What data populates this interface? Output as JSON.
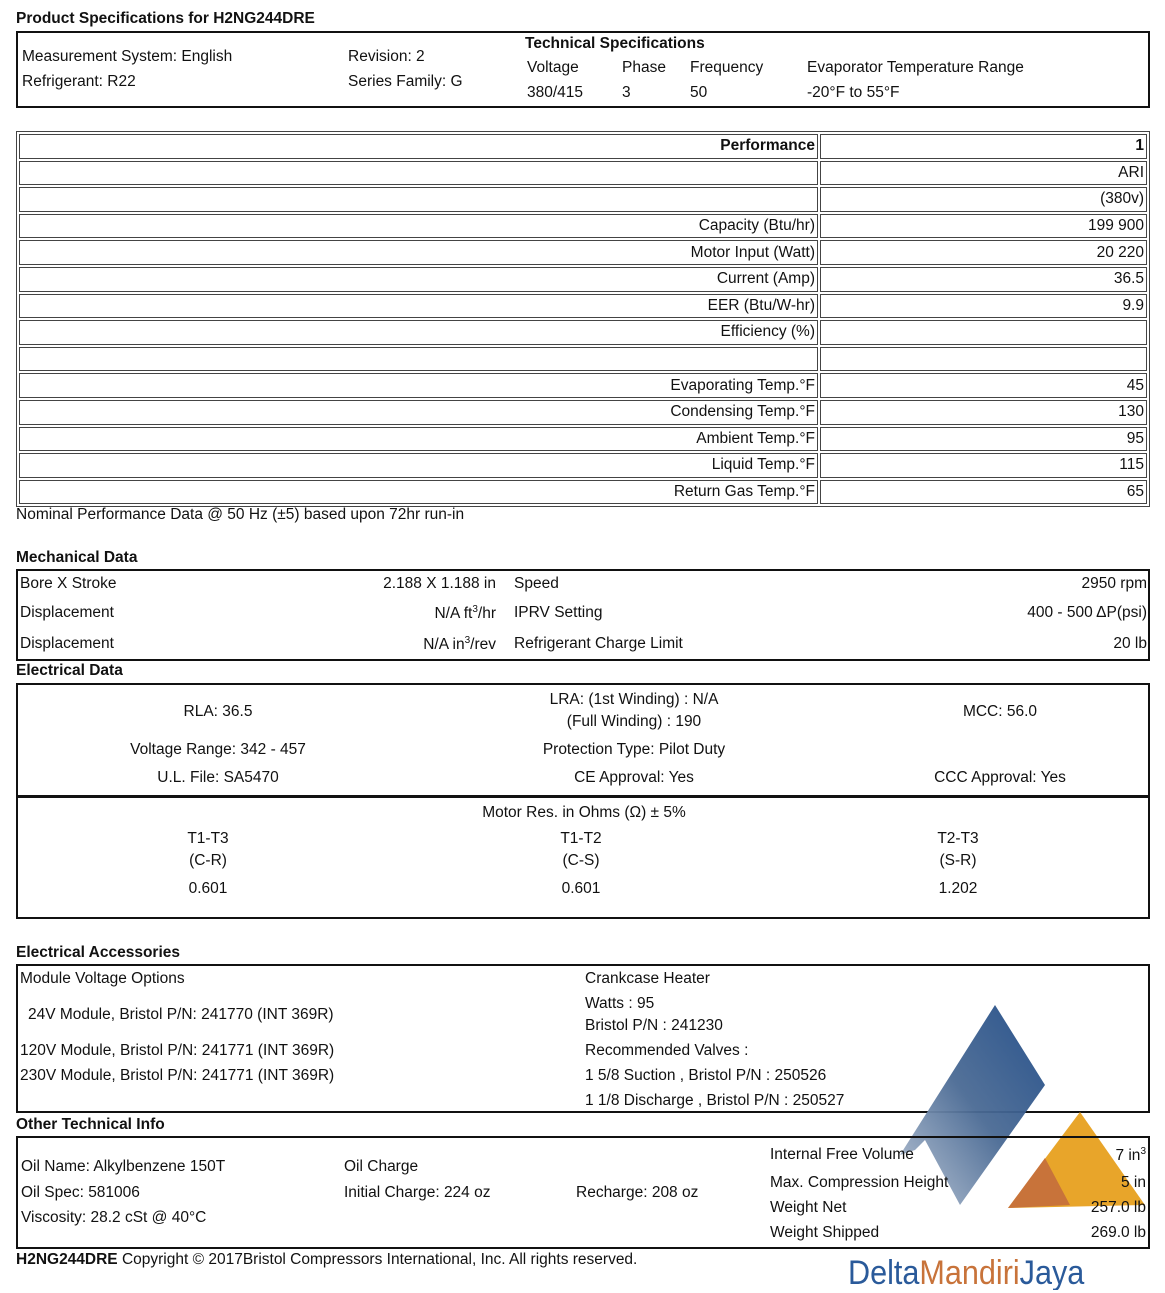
{
  "title": "Product Specifications for H2NG244DRE",
  "header": {
    "measurement": "Measurement System: English",
    "refrigerant": "Refrigerant: R22",
    "revision": "Revision: 2",
    "series": "Series Family: G",
    "tech_title": "Technical Specifications",
    "voltage_label": "Voltage",
    "voltage": "380/415",
    "phase_label": "Phase",
    "phase": "3",
    "freq_label": "Frequency",
    "freq": "50",
    "evap_label": "Evaporator Temperature Range",
    "evap": "-20°F to 55°F"
  },
  "performance": {
    "rows": [
      {
        "label": "Performance",
        "value": "1",
        "bold": true
      },
      {
        "label": "",
        "value": "ARI"
      },
      {
        "label": "",
        "value": "(380v)"
      },
      {
        "label": "Capacity (Btu/hr)",
        "value": "199 900"
      },
      {
        "label": "Motor Input (Watt)",
        "value": "20 220"
      },
      {
        "label": "Current (Amp)",
        "value": "36.5"
      },
      {
        "label": "EER (Btu/W-hr)",
        "value": "9.9"
      },
      {
        "label": "Efficiency (%)",
        "value": ""
      },
      {
        "label": "",
        "value": ""
      },
      {
        "label": "Evaporating Temp.°F",
        "value": "45"
      },
      {
        "label": "Condensing Temp.°F",
        "value": "130"
      },
      {
        "label": "Ambient Temp.°F",
        "value": "95"
      },
      {
        "label": "Liquid Temp.°F",
        "value": "115"
      },
      {
        "label": "Return Gas Temp.°F",
        "value": "65"
      }
    ],
    "note": "Nominal Performance Data @ 50 Hz (±5) based upon 72hr run-in"
  },
  "mechanical": {
    "title": "Mechanical Data",
    "bore_label": "Bore X Stroke",
    "bore": "2.188 X  1.188 in",
    "disp1_label": "Displacement",
    "disp1": "N/A ft",
    "disp1_unit": "/hr",
    "disp2_label": "Displacement",
    "disp2": "N/A in",
    "disp2_unit": "/rev",
    "sup": "3",
    "speed_label": "Speed",
    "speed": "2950 rpm",
    "iprv_label": "IPRV Setting",
    "iprv": "400 - 500 ΔP(psi)",
    "charge_label": "Refrigerant Charge Limit",
    "charge": "20 lb"
  },
  "electrical": {
    "title": "Electrical Data",
    "rla": "RLA: 36.5",
    "lra1": "LRA: (1st Winding) : N/A",
    "lra2": "(Full Winding) : 190",
    "mcc": "MCC: 56.0",
    "vrange": "Voltage Range: 342 - 457",
    "protection": "Protection Type: Pilot Duty",
    "ul": "U.L. File: SA5470",
    "ce": "CE Approval: Yes",
    "ccc": "CCC Approval: Yes",
    "motor_res": "Motor Res. in Ohms (Ω) ± 5%",
    "res": [
      {
        "t": "T1-T3",
        "p": "(C-R)",
        "v": "0.601"
      },
      {
        "t": "T1-T2",
        "p": "(C-S)",
        "v": "0.601"
      },
      {
        "t": "T2-T3",
        "p": "(S-R)",
        "v": "1.202"
      }
    ]
  },
  "accessories": {
    "title": "Electrical Accessories",
    "module_title": "Module Voltage Options",
    "m24": "24V Module, Bristol P/N:  241770 (INT 369R)",
    "m120": "120V Module, Bristol P/N: 241771 (INT 369R)",
    "m230": "230V Module, Bristol P/N: 241771 (INT 369R)",
    "heater": "Crankcase Heater",
    "watts": "Watts : 95",
    "heater_pn": "Bristol P/N : 241230",
    "valves": "Recommended Valves :",
    "suction": "1 5/8 Suction , Bristol P/N : 250526",
    "discharge": "1 1/8 Discharge , Bristol P/N : 250527"
  },
  "other": {
    "title": "Other Technical Info",
    "oil_name": "Oil Name: Alkylbenzene 150T",
    "oil_spec": "Oil Spec: 581006",
    "viscosity": "Viscosity: 28.2 cSt @ 40°C",
    "oil_charge": "Oil Charge",
    "initial": "Initial Charge: 224 oz",
    "recharge": "Recharge: 208 oz",
    "ifv_label": "Internal Free Volume",
    "ifv": "7 in",
    "ifv_sup": "3",
    "mch_label": "Max. Compression Height",
    "mch": "5 in",
    "wn_label": "Weight Net",
    "wn": "257.0 lb",
    "ws_label": "Weight Shipped",
    "ws": "269.0 lb"
  },
  "footer": {
    "model": "H2NG244DRE",
    "text": " Copyright © 2017Bristol Compressors International, Inc. All rights reserved."
  },
  "logo": {
    "word1": "Delta",
    "word2": "Mandiri",
    "word3": "Jaya",
    "colors": {
      "blue": "#2a5a9a",
      "orange": "#c8733a",
      "gold": "#e8a52a"
    }
  }
}
